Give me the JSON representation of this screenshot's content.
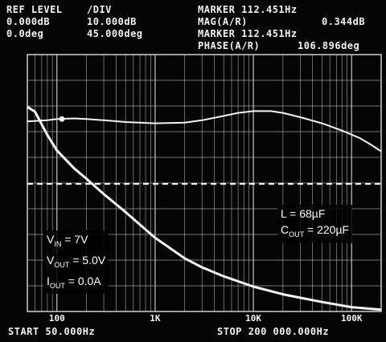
{
  "header": {
    "ref_level_label": "REF LEVEL",
    "ref_mag": "0.000dB",
    "ref_phase": "0.0deg",
    "div_label": "/DIV",
    "div_mag": "10.000dB",
    "div_phase": "45.000deg",
    "marker_line1": "MARKER 112.451Hz",
    "mag_label": "MAG(A/R)",
    "mag_value": "0.344dB",
    "marker_line2": "MARKER 112.451Hz",
    "phase_label": "PHASE(A/R)",
    "phase_value": "106.896deg"
  },
  "footer": {
    "start": "START 50.000Hz",
    "stop": "STOP 200 000.000Hz"
  },
  "annotations": {
    "left": [
      {
        "main": "V",
        "sub": "IN",
        "rest": " = 7V"
      },
      {
        "main": "V",
        "sub": "OUT",
        "rest": " = 5.0V"
      },
      {
        "main": "I",
        "sub": "OUT",
        "rest": " = 0.0A"
      }
    ],
    "right": [
      {
        "main": "L = 68µF",
        "sub": "",
        "rest": ""
      },
      {
        "main": "C",
        "sub": "OUT",
        "rest": " = 220µF"
      }
    ]
  },
  "colors": {
    "background": "#050505",
    "grid": "#cfcfcf",
    "trace": "#f4f4f4"
  },
  "chart_data": {
    "type": "line",
    "x_scale": "log",
    "xlim": [
      50,
      200000
    ],
    "x_tick_labels": [
      "100",
      "1K",
      "10K",
      "100K"
    ],
    "x_tick_values": [
      100,
      1000,
      10000,
      100000
    ],
    "grid": true,
    "series": [
      {
        "role": "phase",
        "x": [
          50,
          80,
          100,
          150,
          200,
          300,
          500,
          1000,
          2000,
          3000,
          5000,
          7000,
          10000,
          15000,
          20000,
          30000,
          50000,
          80000,
          120000,
          150000,
          200000
        ],
        "y": [
          97,
          99,
          101,
          102,
          101,
          99,
          96,
          94,
          95,
          99,
          106,
          111,
          114,
          114,
          111,
          104,
          94,
          82,
          70,
          61,
          48
        ]
      },
      {
        "role": "magnitude",
        "x": [
          50,
          60,
          80,
          100,
          150,
          200,
          300,
          500,
          1000,
          2000,
          3000,
          5000,
          10000,
          20000,
          50000,
          100000,
          200000
        ],
        "y": [
          30,
          28,
          19,
          13,
          6,
          2,
          -4,
          -11,
          -21,
          -29,
          -32.5,
          -36,
          -40,
          -43,
          -46,
          -48,
          -49
        ]
      },
      {
        "role": "reference",
        "x": [
          50,
          200000
        ],
        "y": [
          0,
          0
        ]
      }
    ]
  }
}
